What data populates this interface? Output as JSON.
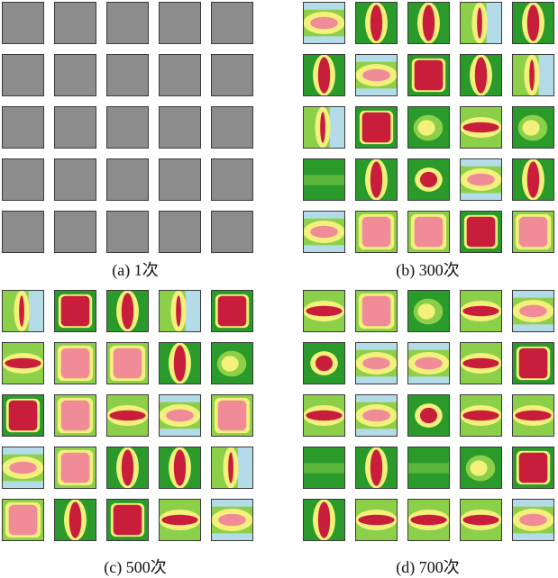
{
  "panels": [
    {
      "caption": "(a) 1次",
      "tiles": [
        "gray",
        "gray",
        "gray",
        "gray",
        "gray",
        "gray",
        "gray",
        "gray",
        "gray",
        "gray",
        "gray",
        "gray",
        "gray",
        "gray",
        "gray",
        "gray",
        "gray",
        "gray",
        "gray",
        "gray",
        "gray",
        "gray",
        "gray",
        "gray",
        "gray"
      ]
    },
    {
      "caption": "(b) 300次",
      "tiles": [
        "hband-pale",
        "vbar-red",
        "vbar-red",
        "vbar-yellow",
        "vbar-red",
        "vbar-red",
        "hband-pale",
        "block-red",
        "vbar-red",
        "vbar-yellow",
        "vbar-yellow",
        "block-red",
        "blob-yellow",
        "hbar-red",
        "blob-yellow",
        "green-plain",
        "vbar-red",
        "blob-red",
        "hband-pale",
        "vbar-red",
        "hband-pale",
        "block-pink",
        "block-pink",
        "block-red",
        "block-pink"
      ]
    },
    {
      "caption": "(c) 500次",
      "tiles": [
        "vbar-yellow",
        "block-red",
        "vbar-red",
        "vbar-yellow",
        "block-red",
        "hbar-red",
        "block-pink",
        "block-pink",
        "vbar-red",
        "blob-yellow",
        "block-red",
        "block-pink",
        "hbar-red",
        "hband-pale",
        "block-pink",
        "hband-pale",
        "block-pink",
        "vbar-red",
        "vbar-red",
        "vbar-yellow",
        "block-pink",
        "vbar-red",
        "block-red",
        "hbar-red",
        "hband-pale"
      ]
    },
    {
      "caption": "(d) 700次",
      "tiles": [
        "hbar-red",
        "block-pink",
        "blob-yellow",
        "hbar-red",
        "hband-pale",
        "blob-red",
        "hband-pale",
        "hband-pale",
        "hbar-red",
        "block-red",
        "hbar-red",
        "hband-pale",
        "blob-red",
        "hbar-red",
        "hbar-red",
        "green-plain",
        "vbar-red",
        "green-plain",
        "blob-yellow",
        "block-red",
        "vbar-red",
        "hbar-red",
        "hbar-red",
        "hbar-red",
        "hband-pale"
      ]
    }
  ],
  "colors": {
    "gray": "#8c8c8c",
    "green": "#2a9a2a",
    "lightgreen": "#8cd04a",
    "yellow": "#f4f07c",
    "paleblue": "#b4dce8",
    "red": "#c81e3c",
    "pink": "#f08c98"
  }
}
